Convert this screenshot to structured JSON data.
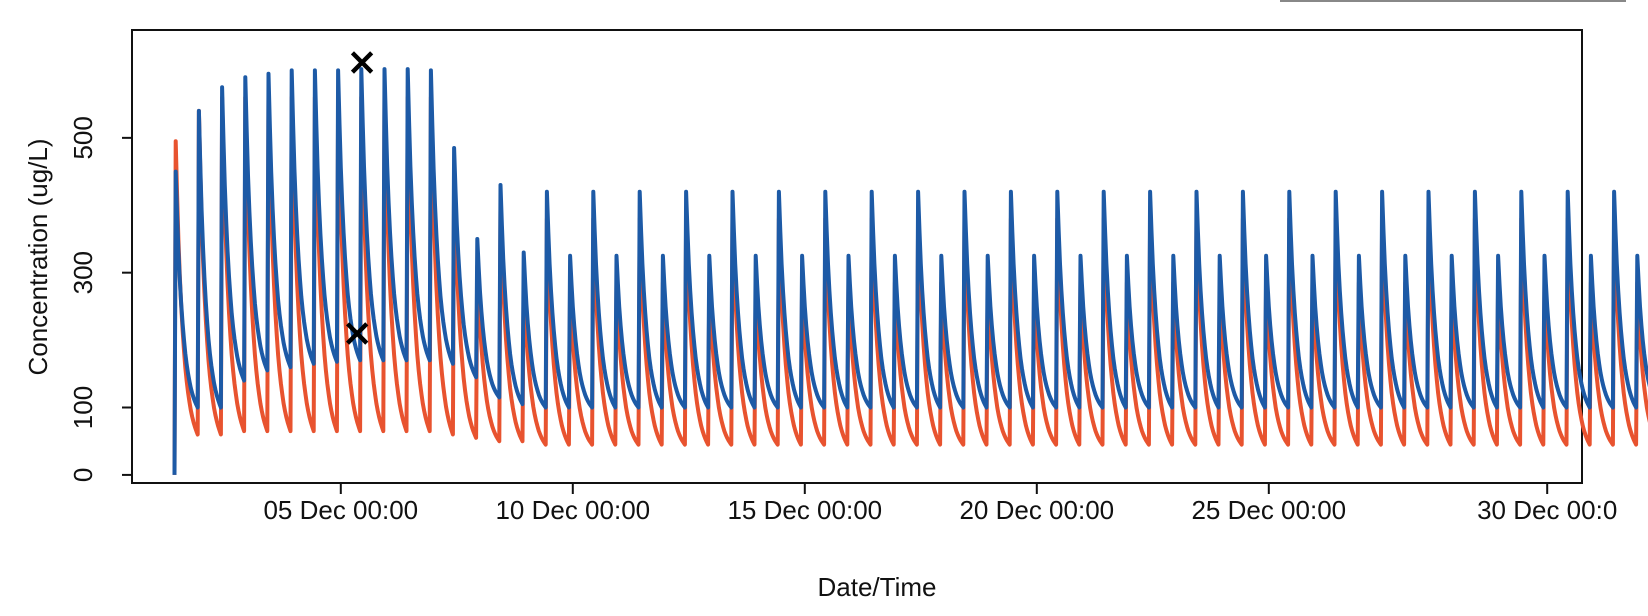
{
  "chart_data": {
    "type": "line",
    "title": "",
    "xlabel": "Date/Time",
    "ylabel": "Concentration (ug/L)",
    "ylim": [
      -12,
      660
    ],
    "yticks": [
      0,
      100,
      300,
      500
    ],
    "ytick_labels": [
      "0",
      "100",
      "300",
      "500"
    ],
    "xlim": [
      "2020-11-30 12:00",
      "2020-12-31 18:00"
    ],
    "xticks": [
      "2020-12-05 00:00",
      "2020-12-10 00:00",
      "2020-12-15 00:00",
      "2020-12-20 00:00",
      "2020-12-25 00:00",
      "2020-12-31 00:00"
    ],
    "xtick_labels": [
      "05 Dec 00:00",
      "10 Dec 00:00",
      "15 Dec 00:00",
      "20 Dec 00:00",
      "25 Dec 00:00",
      "30 Dec 00:0"
    ],
    "grid": false,
    "series": [
      {
        "color": "#e8532f",
        "peak_values": [
          495,
          540,
          560,
          560,
          560,
          560,
          560,
          560,
          560,
          560,
          560,
          560,
          440,
          310,
          395,
          290,
          380,
          280,
          380,
          285,
          380,
          285,
          380,
          285,
          380,
          285,
          380,
          285,
          380,
          285,
          380,
          285,
          380,
          285,
          380,
          285,
          380,
          285,
          380,
          285,
          380,
          285,
          380,
          285,
          380,
          285,
          380,
          285,
          380,
          285,
          380,
          285,
          380,
          285,
          380,
          285,
          380,
          285,
          380,
          285,
          380,
          285,
          380,
          285,
          380,
          285
        ],
        "trough_values": [
          60,
          60,
          65,
          65,
          65,
          65,
          65,
          65,
          65,
          65,
          65,
          60,
          55,
          50,
          50,
          45,
          45,
          45,
          45,
          45,
          45,
          45,
          45,
          45,
          45,
          45,
          45,
          45,
          45,
          45,
          45,
          45,
          45,
          45,
          45,
          45,
          45,
          45,
          45,
          45,
          45,
          45,
          45,
          45,
          45,
          45,
          45,
          45,
          45,
          45,
          45,
          45,
          45,
          45,
          45,
          45,
          45,
          45,
          45,
          45,
          45,
          45,
          45,
          45,
          45,
          45
        ]
      },
      {
        "color": "#1d5aa6",
        "peak_values": [
          450,
          540,
          575,
          590,
          595,
          600,
          600,
          600,
          602,
          602,
          602,
          600,
          485,
          350,
          430,
          330,
          420,
          325,
          420,
          325,
          420,
          325,
          420,
          325,
          420,
          325,
          420,
          325,
          420,
          325,
          420,
          325,
          420,
          325,
          420,
          325,
          420,
          325,
          420,
          325,
          420,
          325,
          420,
          325,
          420,
          325,
          420,
          325,
          420,
          325,
          420,
          325,
          420,
          325,
          420,
          325,
          420,
          325,
          420,
          325,
          420,
          325,
          420,
          325,
          420,
          325
        ],
        "trough_values": [
          100,
          100,
          140,
          155,
          160,
          165,
          168,
          170,
          170,
          170,
          170,
          165,
          145,
          115,
          105,
          100,
          100,
          100,
          100,
          100,
          100,
          100,
          100,
          100,
          100,
          100,
          100,
          100,
          100,
          100,
          100,
          100,
          100,
          100,
          100,
          100,
          100,
          100,
          100,
          100,
          100,
          100,
          100,
          100,
          100,
          100,
          100,
          100,
          100,
          100,
          100,
          100,
          100,
          100,
          100,
          100,
          100,
          100,
          100,
          100,
          100,
          100,
          100,
          100,
          100,
          100
        ]
      }
    ],
    "markers": [
      {
        "symbol": "×",
        "x": "2020-12-05 11:00",
        "y": 612
      },
      {
        "symbol": "×",
        "x": "2020-12-05 08:30",
        "y": 210
      }
    ]
  }
}
